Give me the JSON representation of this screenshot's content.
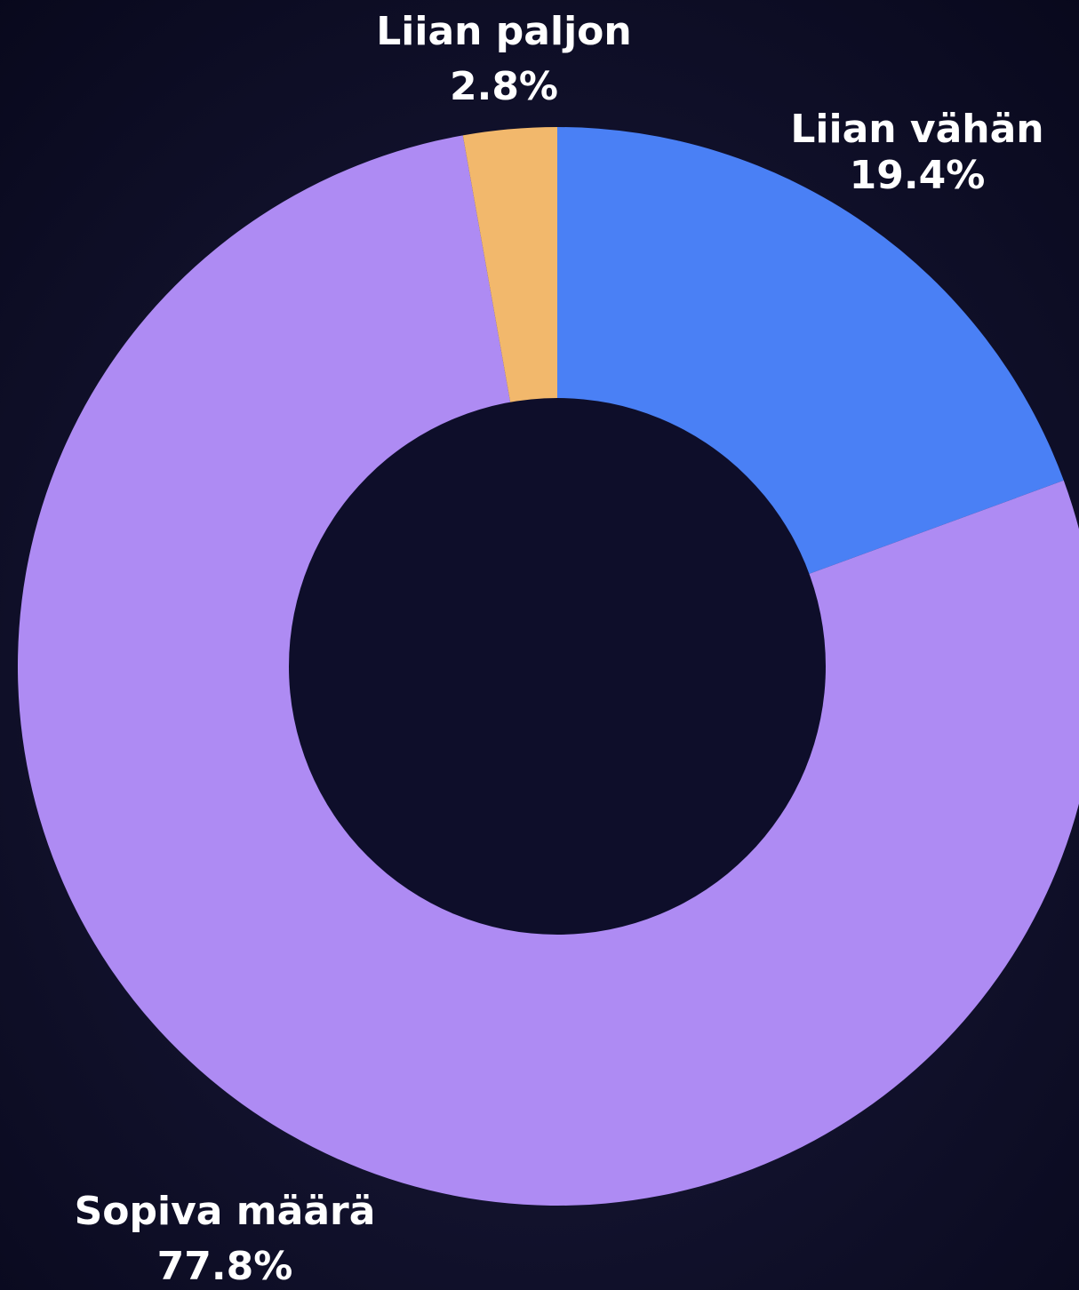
{
  "chart_data": {
    "type": "pie",
    "categories": [
      "Liian vähän",
      "Sopiva määrä",
      "Liian paljon"
    ],
    "values": [
      19.4,
      77.8,
      2.8
    ],
    "value_labels": [
      "19.4%",
      "77.8%",
      "2.8%"
    ],
    "colors": [
      "#4a80f5",
      "#ae8bf3",
      "#f2b86c"
    ],
    "donut": true
  }
}
